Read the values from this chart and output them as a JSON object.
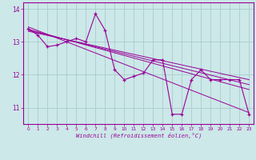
{
  "xlabel": "Windchill (Refroidissement éolien,°C)",
  "x": [
    0,
    1,
    2,
    3,
    4,
    5,
    6,
    7,
    8,
    9,
    10,
    11,
    12,
    13,
    14,
    15,
    16,
    17,
    18,
    19,
    20,
    21,
    22,
    23
  ],
  "y_main": [
    13.4,
    13.2,
    12.85,
    12.9,
    13.0,
    13.1,
    13.0,
    13.85,
    13.35,
    12.15,
    11.85,
    11.95,
    12.05,
    12.45,
    12.45,
    10.8,
    10.8,
    11.85,
    12.15,
    11.85,
    11.85,
    11.85,
    11.85,
    10.8
  ],
  "trend_lines": [
    {
      "x": [
        0,
        23
      ],
      "y": [
        13.45,
        10.85
      ]
    },
    {
      "x": [
        0,
        23
      ],
      "y": [
        13.38,
        11.55
      ]
    },
    {
      "x": [
        0,
        23
      ],
      "y": [
        13.35,
        11.7
      ]
    },
    {
      "x": [
        0,
        23
      ],
      "y": [
        13.32,
        11.85
      ]
    }
  ],
  "ylim": [
    10.5,
    14.2
  ],
  "yticks": [
    11,
    12,
    13,
    14
  ],
  "xticks": [
    0,
    1,
    2,
    3,
    4,
    5,
    6,
    7,
    8,
    9,
    10,
    11,
    12,
    13,
    14,
    15,
    16,
    17,
    18,
    19,
    20,
    21,
    22,
    23
  ],
  "line_color": "#990099",
  "bg_color": "#cce8e8",
  "grid_color": "#aacccc",
  "tick_label_color": "#990099",
  "axis_label_color": "#990099"
}
